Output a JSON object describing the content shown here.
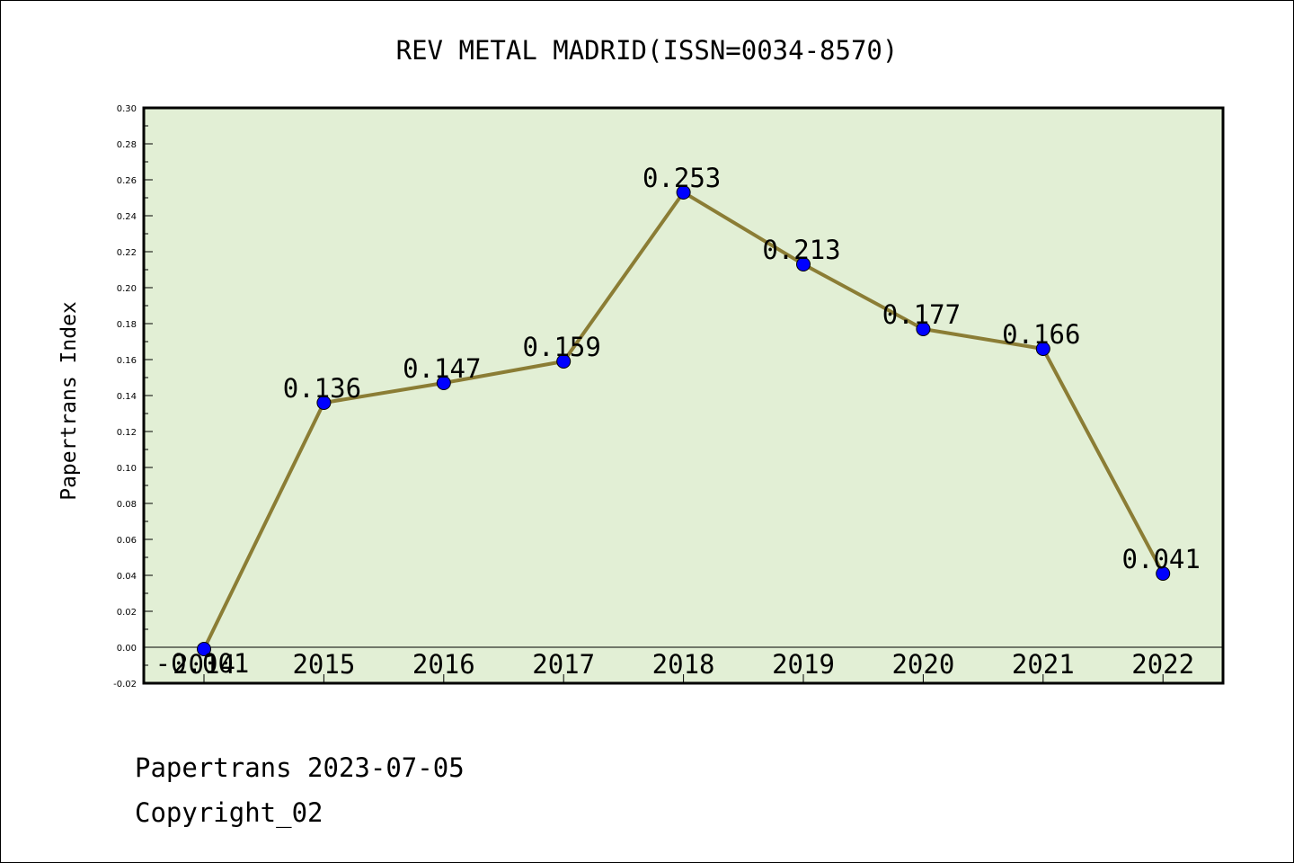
{
  "chart_data": {
    "type": "line",
    "title": "REV METAL MADRID(ISSN=0034-8570)",
    "xlabel": "",
    "ylabel": "Papertrans Index",
    "categories": [
      "2014",
      "2015",
      "2016",
      "2017",
      "2018",
      "2019",
      "2020",
      "2021",
      "2022"
    ],
    "series": [
      {
        "values": [
          -0.001,
          0.136,
          0.147,
          0.159,
          0.253,
          0.213,
          0.177,
          0.166,
          0.041
        ],
        "labels": [
          "-0.001",
          "0.136",
          "0.147",
          "0.159",
          "0.253",
          "0.213",
          "0.177",
          "0.166",
          "0.041"
        ]
      }
    ],
    "ylim": [
      -0.02,
      0.3
    ],
    "yticks": [
      "-0.02",
      "0.00",
      "0.02",
      "0.04",
      "0.06",
      "0.08",
      "0.10",
      "0.12",
      "0.14",
      "0.16",
      "0.18",
      "0.20",
      "0.22",
      "0.24",
      "0.26",
      "0.28",
      "0.30"
    ],
    "grid": false,
    "zero_line": true,
    "colors": {
      "plot_background": "#e2efd5",
      "line": "#8b7d35",
      "marker": "#0000ff"
    }
  },
  "footer": {
    "date_line": "Papertrans 2023-07-05",
    "copyright": "Copyright_02"
  }
}
